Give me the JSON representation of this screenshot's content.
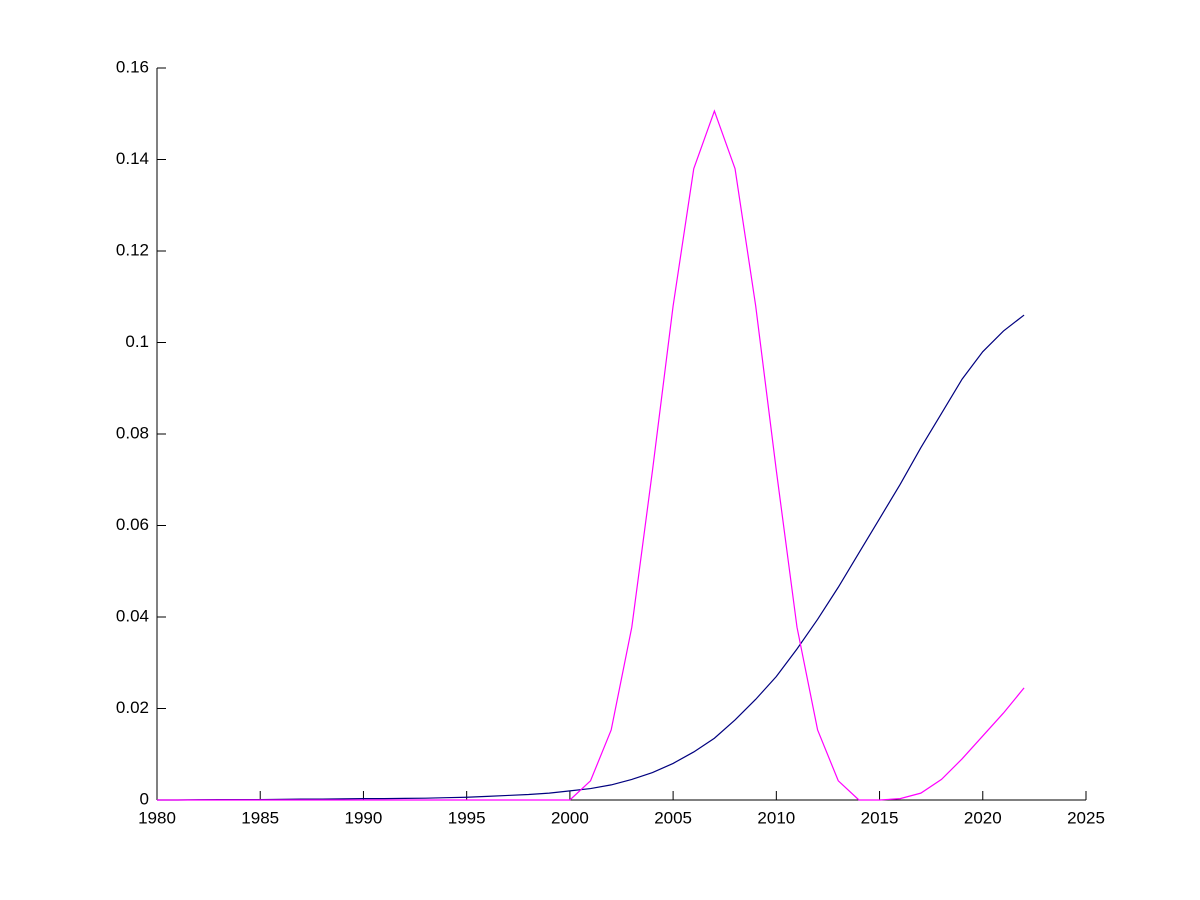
{
  "chart_data": {
    "type": "line",
    "x": [
      1980,
      1981,
      1982,
      1983,
      1984,
      1985,
      1986,
      1987,
      1988,
      1989,
      1990,
      1991,
      1992,
      1993,
      1994,
      1995,
      1996,
      1997,
      1998,
      1999,
      2000,
      2001,
      2002,
      2003,
      2004,
      2005,
      2006,
      2007,
      2008,
      2009,
      2010,
      2011,
      2012,
      2013,
      2014,
      2015,
      2016,
      2017,
      2018,
      2019,
      2020,
      2021,
      2022
    ],
    "series": [
      {
        "color": "#00007f",
        "values": [
          0,
          0,
          5e-05,
          8e-05,
          0.0001,
          0.0001,
          0.00015,
          0.0002,
          0.0002,
          0.00025,
          0.0003,
          0.0003,
          0.00035,
          0.0004,
          0.0005,
          0.0006,
          0.0008,
          0.001,
          0.0012,
          0.0015,
          0.002,
          0.0025,
          0.0033,
          0.0045,
          0.006,
          0.008,
          0.0105,
          0.0135,
          0.0175,
          0.022,
          0.027,
          0.033,
          0.0395,
          0.0465,
          0.054,
          0.0615,
          0.069,
          0.077,
          0.0845,
          0.092,
          0.098,
          0.1025,
          0.106
        ]
      },
      {
        "color": "#ff00ff",
        "values": [
          0,
          0,
          0,
          0,
          0,
          0,
          0,
          0,
          0,
          0,
          0,
          0,
          0,
          0,
          0,
          0,
          0,
          0,
          0,
          0,
          0,
          0.0042,
          0.0153,
          0.0378,
          0.072,
          0.108,
          0.138,
          0.1506,
          0.138,
          0.108,
          0.072,
          0.0378,
          0.0153,
          0.0042,
          0,
          0,
          0.0003,
          0.0015,
          0.0045,
          0.009,
          0.014,
          0.019,
          0.0245
        ]
      }
    ],
    "xlim": [
      1980,
      2025
    ],
    "xticks": [
      1980,
      1985,
      1990,
      1995,
      2000,
      2005,
      2010,
      2015,
      2020,
      2025
    ],
    "ylim": [
      0,
      0.16
    ],
    "yticks": [
      0,
      0.02,
      0.04,
      0.06,
      0.08,
      0.1,
      0.12,
      0.14,
      0.16
    ]
  }
}
